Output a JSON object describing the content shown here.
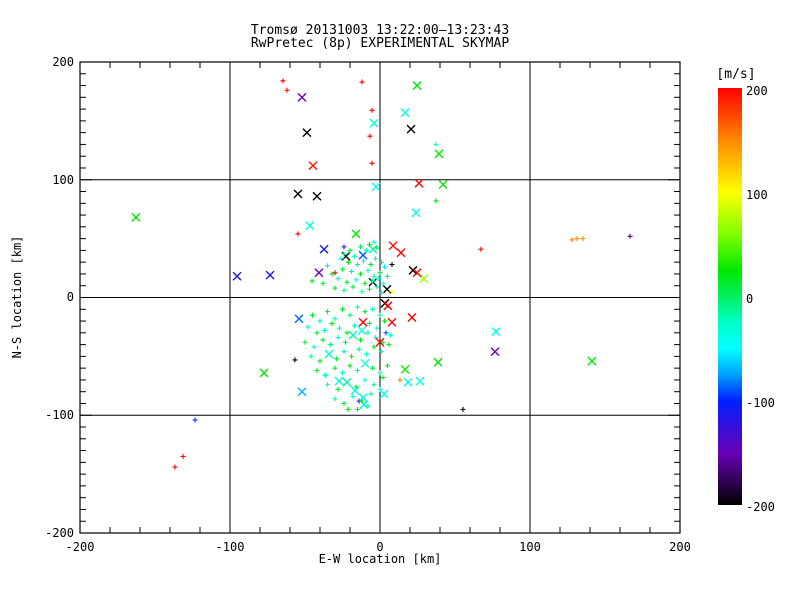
{
  "title": {
    "line1": "Tromsø 20131003 13:22:00–13:23:43",
    "line2": "RwPretec (8p) EXPERIMENTAL SKYMAP"
  },
  "axes": {
    "x": {
      "label": "E-W location [km]",
      "range": [
        -200,
        200
      ],
      "minor_step": 20,
      "ticks": [
        {
          "value": -200,
          "label": "-200"
        },
        {
          "value": -100,
          "label": "-100"
        },
        {
          "value": 0,
          "label": "0"
        },
        {
          "value": 100,
          "label": "100"
        },
        {
          "value": 200,
          "label": "200"
        }
      ]
    },
    "y": {
      "label": "N-S location [km]",
      "range": [
        -200,
        200
      ],
      "minor_step": 10,
      "ticks": [
        {
          "value": 200,
          "label": "200"
        },
        {
          "value": 100,
          "label": "100"
        },
        {
          "value": 0,
          "label": "0"
        },
        {
          "value": -100,
          "label": "-100"
        },
        {
          "value": -200,
          "label": "-200"
        }
      ]
    }
  },
  "colorbar": {
    "unit": "[m/s]",
    "range": [
      -200,
      200
    ],
    "ticks": [
      {
        "value": 200,
        "label": "200"
      },
      {
        "value": 100,
        "label": "100"
      },
      {
        "value": 0,
        "label": "0"
      },
      {
        "value": -100,
        "label": "-100"
      },
      {
        "value": -200,
        "label": "-200"
      }
    ],
    "stops": [
      {
        "v": -200,
        "c": "#000000"
      },
      {
        "v": -150,
        "c": "#6a00b8"
      },
      {
        "v": -100,
        "c": "#0020ff"
      },
      {
        "v": -75,
        "c": "#00a0ff"
      },
      {
        "v": -50,
        "c": "#00ffff"
      },
      {
        "v": -25,
        "c": "#00ffc8"
      },
      {
        "v": 0,
        "c": "#00f060"
      },
      {
        "v": 25,
        "c": "#00e800"
      },
      {
        "v": 60,
        "c": "#80ff00"
      },
      {
        "v": 100,
        "c": "#ffff00"
      },
      {
        "v": 150,
        "c": "#ff8800"
      },
      {
        "v": 200,
        "c": "#ff0000"
      }
    ]
  },
  "chart_data": {
    "type": "scatter",
    "title": "Tromsø 20131003 13:22:00–13:23:43 / RwPretec (8p) EXPERIMENTAL SKYMAP",
    "xlabel": "E-W location [km]",
    "ylabel": "N-S location [km]",
    "xlim": [
      -200,
      200
    ],
    "ylim": [
      -200,
      200
    ],
    "grid_lines": [
      -100,
      0,
      100
    ],
    "legend_position": "colorbar-right",
    "color_scale": {
      "unit": "m/s",
      "min": -200,
      "max": 200
    },
    "marker_note": "points = [x_km, y_km, velocity_mps, marker(0=small plus,1=large X)]",
    "points": [
      [
        -64.7,
        184,
        200,
        0
      ],
      [
        -12,
        183,
        200,
        0
      ],
      [
        -62,
        176,
        200,
        0
      ],
      [
        -52,
        170,
        -150,
        1
      ],
      [
        -5.3,
        159,
        200,
        0
      ],
      [
        16.7,
        157,
        -40,
        1
      ],
      [
        24.7,
        180,
        25,
        1
      ],
      [
        -4,
        148,
        -30,
        1
      ],
      [
        20.7,
        143,
        -200,
        1
      ],
      [
        -6.7,
        137,
        200,
        0
      ],
      [
        37.3,
        130,
        -35,
        0
      ],
      [
        39.3,
        122,
        25,
        1
      ],
      [
        -48.7,
        140,
        -200,
        1
      ],
      [
        -44.7,
        112,
        195,
        1
      ],
      [
        -5.3,
        114,
        200,
        0
      ],
      [
        26,
        97,
        200,
        1
      ],
      [
        42,
        96,
        25,
        1
      ],
      [
        -2.7,
        94,
        -40,
        1
      ],
      [
        37.3,
        82,
        25,
        0
      ],
      [
        -54.7,
        88,
        -200,
        1
      ],
      [
        -42,
        86,
        -200,
        1
      ],
      [
        24,
        72,
        -40,
        1
      ],
      [
        -162.7,
        68,
        25,
        1
      ],
      [
        -46.7,
        61,
        -40,
        1
      ],
      [
        -54.7,
        54,
        200,
        0
      ],
      [
        -16,
        54,
        25,
        1
      ],
      [
        128,
        49,
        150,
        0
      ],
      [
        131.3,
        50,
        150,
        0
      ],
      [
        135.3,
        50,
        150,
        0
      ],
      [
        166.7,
        52,
        -160,
        0
      ],
      [
        -37.3,
        41,
        -110,
        1
      ],
      [
        -22.7,
        35,
        -200,
        1
      ],
      [
        -11.3,
        36,
        -90,
        1
      ],
      [
        8.7,
        44,
        200,
        1
      ],
      [
        14,
        38,
        200,
        1
      ],
      [
        67.3,
        41,
        200,
        0
      ],
      [
        -95.3,
        18,
        -115,
        1
      ],
      [
        -73.3,
        19,
        -115,
        1
      ],
      [
        -40.7,
        21,
        -150,
        1
      ],
      [
        -30,
        21,
        200,
        0
      ],
      [
        -45.3,
        14,
        25,
        0
      ],
      [
        29.3,
        16,
        70,
        1
      ],
      [
        22,
        23,
        -200,
        1
      ],
      [
        24.7,
        21,
        200,
        1
      ],
      [
        4.7,
        7,
        -200,
        1
      ],
      [
        -4.7,
        13,
        -200,
        1
      ],
      [
        8,
        5,
        100,
        0
      ],
      [
        -4.7,
        41,
        -20,
        1
      ],
      [
        8,
        28,
        -200,
        0
      ],
      [
        -24,
        43,
        -120,
        0
      ],
      [
        -24,
        37,
        -15,
        0
      ],
      [
        -20,
        40,
        15,
        0
      ],
      [
        -17,
        35,
        -30,
        0
      ],
      [
        -13,
        43,
        5,
        0
      ],
      [
        -9,
        40,
        -20,
        0
      ],
      [
        -7,
        45,
        20,
        0
      ],
      [
        -4,
        47,
        -35,
        0
      ],
      [
        -2,
        42,
        10,
        0
      ],
      [
        -21,
        30,
        25,
        0
      ],
      [
        -15,
        28,
        -15,
        0
      ],
      [
        -11,
        31,
        -40,
        0
      ],
      [
        -6,
        28,
        15,
        0
      ],
      [
        -3,
        33,
        -25,
        0
      ],
      [
        1,
        30,
        -10,
        0
      ],
      [
        -25,
        24,
        10,
        0
      ],
      [
        -19,
        22,
        -20,
        0
      ],
      [
        -13,
        20,
        20,
        0
      ],
      [
        -8,
        23,
        -30,
        0
      ],
      [
        -4,
        18,
        -15,
        0
      ],
      [
        0,
        21,
        10,
        0
      ],
      [
        -28,
        16,
        -25,
        0
      ],
      [
        -22,
        13,
        15,
        0
      ],
      [
        -16,
        15,
        -35,
        0
      ],
      [
        -10,
        12,
        25,
        0
      ],
      [
        -5,
        14,
        -10,
        0
      ],
      [
        -1,
        16,
        -30,
        0
      ],
      [
        -30,
        8,
        20,
        0
      ],
      [
        -24,
        6,
        -15,
        0
      ],
      [
        -18,
        9,
        10,
        0
      ],
      [
        -12,
        5,
        -25,
        0
      ],
      [
        -7,
        7,
        15,
        0
      ],
      [
        -2,
        9,
        -20,
        0
      ],
      [
        2,
        12,
        -40,
        0
      ],
      [
        -35,
        27,
        -20,
        0
      ],
      [
        -32,
        20,
        10,
        0
      ],
      [
        3,
        26,
        -55,
        0
      ],
      [
        5,
        18,
        -15,
        0
      ],
      [
        -38,
        12,
        15,
        0
      ],
      [
        -26,
        33,
        -45,
        0
      ],
      [
        1,
        4,
        -30,
        0
      ],
      [
        3.3,
        -5,
        -200,
        1
      ],
      [
        5.3,
        -7,
        200,
        1
      ],
      [
        -54,
        -18,
        -85,
        1
      ],
      [
        -11.3,
        -21,
        200,
        1
      ],
      [
        8,
        -21,
        200,
        1
      ],
      [
        21.3,
        -17,
        200,
        1
      ],
      [
        77.3,
        -29,
        -40,
        1
      ],
      [
        76.7,
        -46,
        -150,
        1
      ],
      [
        141.3,
        -54,
        25,
        1
      ],
      [
        38.7,
        -55,
        25,
        1
      ],
      [
        16.7,
        -61,
        30,
        1
      ],
      [
        13.3,
        -70,
        150,
        0
      ],
      [
        18.7,
        -72,
        -40,
        1
      ],
      [
        26.7,
        -71,
        -40,
        1
      ],
      [
        2.7,
        -82,
        -45,
        1
      ],
      [
        -77.3,
        -64,
        25,
        1
      ],
      [
        -52,
        -80,
        -70,
        1
      ],
      [
        -56.7,
        -53,
        -200,
        0
      ],
      [
        -36.7,
        -66,
        -40,
        0
      ],
      [
        -27.3,
        -71,
        -30,
        1
      ],
      [
        -16.7,
        -79,
        -40,
        1
      ],
      [
        -11.3,
        -85,
        -40,
        1
      ],
      [
        -10.7,
        -91,
        -40,
        1
      ],
      [
        -14,
        -88,
        -130,
        0
      ],
      [
        -21.3,
        -95,
        25,
        0
      ],
      [
        55.3,
        -95,
        -200,
        0
      ],
      [
        -123.3,
        -104,
        -95,
        0
      ],
      [
        -131.3,
        -135,
        200,
        0
      ],
      [
        -136.7,
        -144,
        200,
        0
      ],
      [
        0,
        -38,
        200,
        1
      ],
      [
        4,
        -30,
        -90,
        0
      ],
      [
        -45,
        -15,
        10,
        0
      ],
      [
        -40,
        -20,
        -20,
        0
      ],
      [
        -35,
        -12,
        15,
        0
      ],
      [
        -30,
        -18,
        -30,
        0
      ],
      [
        -25,
        -10,
        20,
        0
      ],
      [
        -20,
        -15,
        -10,
        0
      ],
      [
        -15,
        -8,
        -25,
        0
      ],
      [
        -10,
        -12,
        15,
        0
      ],
      [
        -5,
        -10,
        -35,
        0
      ],
      [
        0,
        -15,
        -15,
        0
      ],
      [
        -48,
        -25,
        -20,
        0
      ],
      [
        -42,
        -30,
        10,
        0
      ],
      [
        -37,
        -28,
        -40,
        0
      ],
      [
        -32,
        -22,
        25,
        0
      ],
      [
        -27,
        -26,
        -15,
        0
      ],
      [
        -22,
        -30,
        15,
        0
      ],
      [
        -17,
        -24,
        -20,
        0
      ],
      [
        -12,
        -28,
        -45,
        1
      ],
      [
        -7,
        -22,
        10,
        0
      ],
      [
        -2,
        -26,
        -30,
        0
      ],
      [
        3,
        -20,
        20,
        0
      ],
      [
        -50,
        -38,
        15,
        0
      ],
      [
        -44,
        -42,
        -25,
        0
      ],
      [
        -38,
        -36,
        20,
        0
      ],
      [
        -33,
        -40,
        -10,
        0
      ],
      [
        -28,
        -34,
        -30,
        0
      ],
      [
        -23,
        -38,
        15,
        0
      ],
      [
        -18,
        -32,
        -20,
        1
      ],
      [
        -13,
        -36,
        25,
        0
      ],
      [
        -8,
        -30,
        -15,
        0
      ],
      [
        -3,
        -34,
        -40,
        0
      ],
      [
        2,
        -38,
        10,
        0
      ],
      [
        7,
        -32,
        -25,
        0
      ],
      [
        -46,
        -50,
        -15,
        0
      ],
      [
        -40,
        -54,
        20,
        0
      ],
      [
        -34,
        -48,
        -35,
        1
      ],
      [
        -29,
        -52,
        10,
        0
      ],
      [
        -24,
        -46,
        -20,
        0
      ],
      [
        -19,
        -50,
        30,
        0
      ],
      [
        -14,
        -44,
        -10,
        0
      ],
      [
        -9,
        -48,
        -30,
        0
      ],
      [
        -4,
        -42,
        15,
        0
      ],
      [
        1,
        -46,
        -25,
        0
      ],
      [
        6,
        -40,
        20,
        0
      ],
      [
        -42,
        -62,
        10,
        0
      ],
      [
        -36,
        -66,
        -20,
        0
      ],
      [
        -30,
        -60,
        15,
        0
      ],
      [
        -25,
        -64,
        -30,
        0
      ],
      [
        -20,
        -58,
        20,
        0
      ],
      [
        -15,
        -62,
        -15,
        0
      ],
      [
        -10,
        -56,
        -40,
        1
      ],
      [
        -5,
        -60,
        10,
        0
      ],
      [
        0,
        -64,
        -20,
        0
      ],
      [
        5,
        -58,
        15,
        0
      ],
      [
        -35,
        -74,
        -25,
        0
      ],
      [
        -28,
        -78,
        10,
        0
      ],
      [
        -22,
        -72,
        -15,
        1
      ],
      [
        -16,
        -76,
        20,
        0
      ],
      [
        -10,
        -70,
        -30,
        0
      ],
      [
        -4,
        -74,
        -10,
        0
      ],
      [
        2,
        -68,
        15,
        0
      ],
      [
        -30,
        -86,
        -20,
        0
      ],
      [
        -24,
        -90,
        10,
        0
      ],
      [
        -18,
        -84,
        -25,
        0
      ],
      [
        -12,
        -88,
        15,
        0
      ],
      [
        -6,
        -82,
        -15,
        0
      ],
      [
        0,
        -78,
        -35,
        0
      ],
      [
        -15,
        -95,
        10,
        0
      ],
      [
        -8,
        -92,
        -20,
        0
      ]
    ]
  }
}
